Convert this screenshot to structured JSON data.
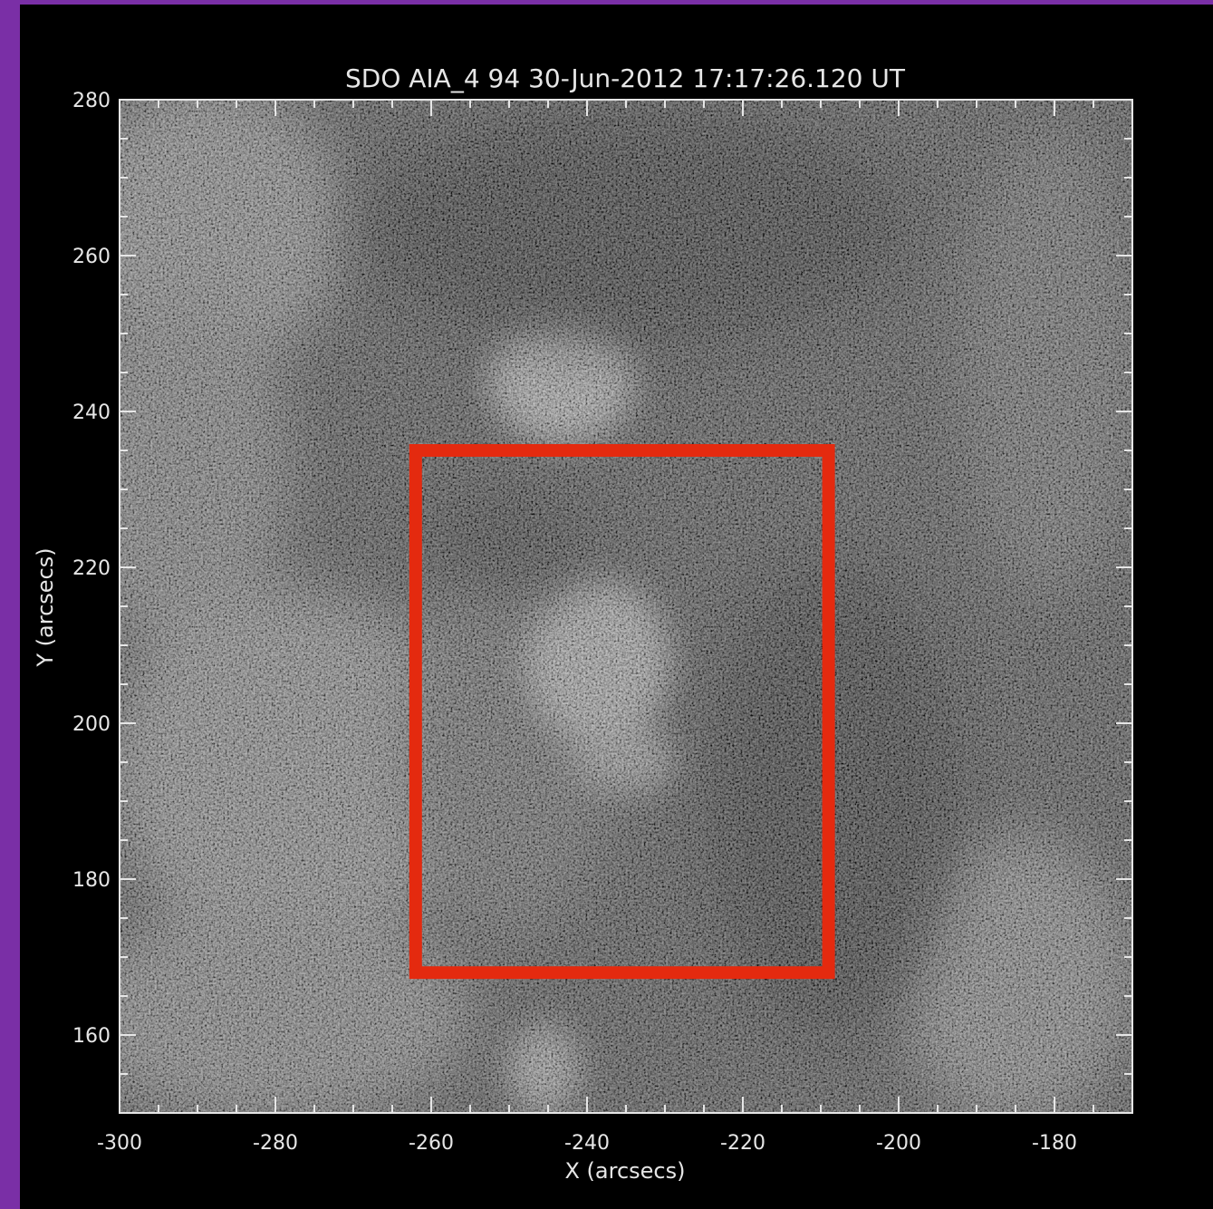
{
  "title": "SDO AIA_4 94 30-Jun-2012 17:17:26.120 UT",
  "x_label": "X (arcsecs)",
  "y_label": "Y (arcsecs)",
  "x_ticks": [
    "-300",
    "-280",
    "-260",
    "-240",
    "-220",
    "-200",
    "-180"
  ],
  "y_ticks": [
    "280",
    "260",
    "240",
    "220",
    "200",
    "180",
    "160"
  ],
  "colors": {
    "frame_border": "#7a2fa6",
    "highlight_box": "#e42a0f",
    "axes": "#e6e6e6"
  },
  "image_description_for_icons": "grayscale-solar-euv-image",
  "highlight": {
    "x_range": [
      -262,
      -209
    ],
    "y_range": [
      168,
      235
    ]
  },
  "axes_range": {
    "x": [
      -300,
      -170
    ],
    "y": [
      150,
      280
    ]
  }
}
